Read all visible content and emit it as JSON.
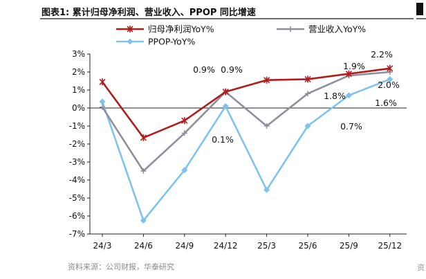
{
  "header": {
    "title": "图表1:  累计归母净利润、营业收入、PPOP 同比增速"
  },
  "footer": {
    "source": "资料来源：公司财报，华泰研究"
  },
  "edge": {
    "fragment_char": "资"
  },
  "chart_data": {
    "type": "line",
    "title": "图表1:  累计归母净利润、营业收入、PPOP 同比增速",
    "categories": [
      "24/3",
      "24/6",
      "24/9",
      "24/12",
      "25/3",
      "25/6",
      "25/9",
      "25/12"
    ],
    "y_ticks": [
      "3%",
      "2%",
      "1%",
      "0%",
      "-1%",
      "-2%",
      "-3%",
      "-4%",
      "-5%",
      "-6%",
      "-7%"
    ],
    "ylim": [
      -7,
      3
    ],
    "grid": false,
    "legend_position": "top",
    "series": [
      {
        "name": "归母净利润YoY%",
        "color": "#b01c1c",
        "marker": "asterisk",
        "values": [
          1.45,
          -1.65,
          -0.7,
          0.9,
          1.55,
          1.6,
          1.9,
          2.2
        ]
      },
      {
        "name": "营业收入YoY%",
        "color": "#8e8e9c",
        "marker": "plus",
        "values": [
          0.05,
          -3.5,
          -1.4,
          0.9,
          -1.0,
          0.8,
          1.8,
          2.0
        ]
      },
      {
        "name": "PPOP-YoY%",
        "color": "#7ec3ee",
        "marker": "diamond",
        "values": [
          0.35,
          -6.25,
          -3.45,
          0.1,
          -4.55,
          -1.0,
          0.7,
          1.6
        ]
      }
    ],
    "annotations": [
      {
        "text": "0.9%"
      },
      {
        "text": "0.9%"
      },
      {
        "text": "0.1%"
      },
      {
        "text": "1.9%"
      },
      {
        "text": "1.8%"
      },
      {
        "text": "0.7%"
      },
      {
        "text": "2.2%"
      },
      {
        "text": "2.0%"
      },
      {
        "text": "1.6%"
      }
    ]
  }
}
